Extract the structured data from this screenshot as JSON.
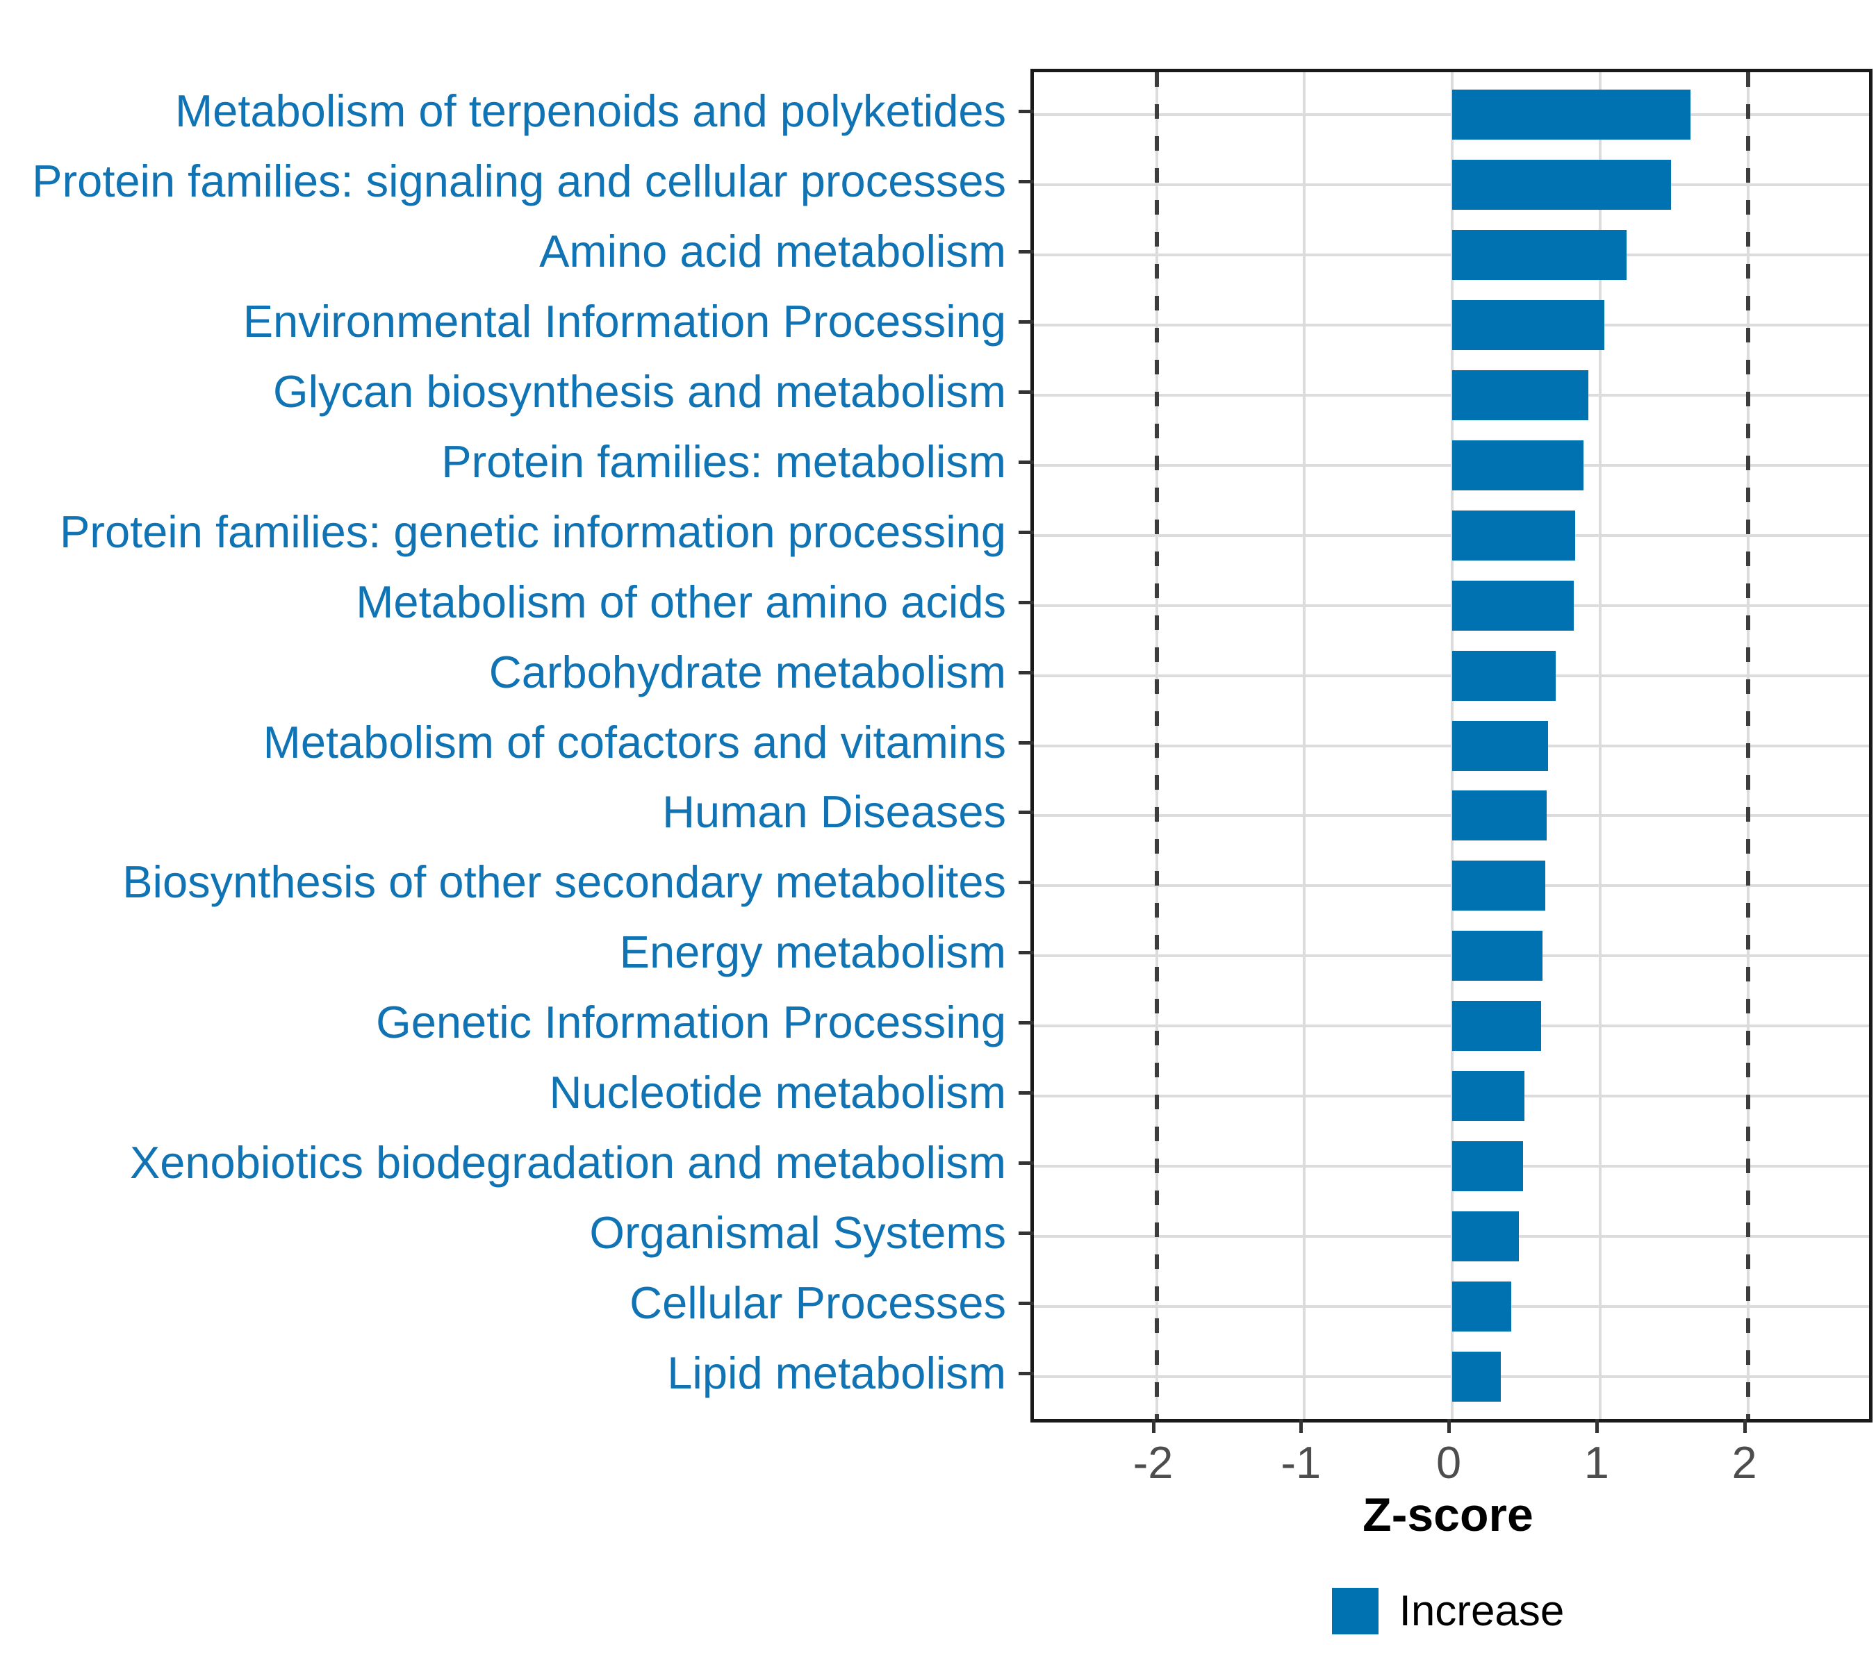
{
  "chart_data": {
    "type": "bar",
    "orientation": "horizontal",
    "title": "",
    "xlabel": "Z-score",
    "ylabel": "",
    "categories": [
      "Metabolism of terpenoids and polyketides",
      "Protein families: signaling and cellular processes",
      "Amino acid metabolism",
      "Environmental Information Processing",
      "Glycan biosynthesis and metabolism",
      "Protein families: metabolism",
      "Protein families: genetic information processing",
      "Metabolism of other amino acids",
      "Carbohydrate metabolism",
      "Metabolism of cofactors and vitamins",
      "Human Diseases",
      "Biosynthesis of other secondary metabolites",
      "Energy metabolism",
      "Genetic Information Processing",
      "Nucleotide metabolism",
      "Xenobiotics biodegradation and metabolism",
      "Organismal Systems",
      "Cellular Processes",
      "Lipid metabolism"
    ],
    "values": [
      1.61,
      1.48,
      1.18,
      1.03,
      0.92,
      0.89,
      0.83,
      0.82,
      0.7,
      0.65,
      0.64,
      0.63,
      0.61,
      0.6,
      0.49,
      0.48,
      0.45,
      0.4,
      0.33
    ],
    "series_name": "Increase",
    "x_ticks": [
      -2,
      -1,
      0,
      1,
      2
    ],
    "xlim": [
      -2.83,
      2.82
    ],
    "reference_lines": [
      -2,
      2
    ],
    "grid": true,
    "legend_position": "bottom"
  },
  "legend": {
    "entries": [
      {
        "label": "Increase",
        "color": "#0072B2"
      }
    ]
  },
  "colors": {
    "bar_fill": "#0072B2",
    "category_label_text": "#1073B4",
    "axis_tick_label_text": "#4D4D4D",
    "axis_title_text": "#000000",
    "gridline": "#DCDCDC",
    "reference_line": "#3D3D3D",
    "panel_border": "#1A1A1A",
    "background": "#FFFFFF"
  }
}
